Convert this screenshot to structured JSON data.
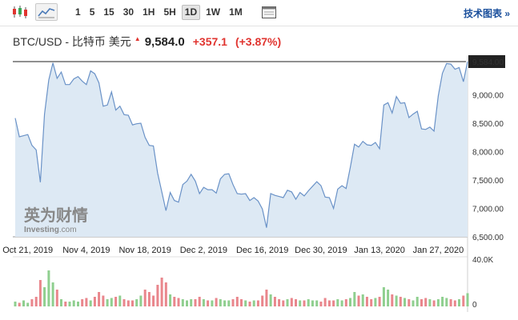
{
  "toolbar": {
    "intervals": [
      "1",
      "5",
      "15",
      "30",
      "1H",
      "5H",
      "1D",
      "1W",
      "1M"
    ],
    "active_interval": "1D",
    "tech_chart_link": "技术图表 »"
  },
  "quote": {
    "name": "BTC/USD - 比特币 美元",
    "price": "9,584.0",
    "change": "+357.1",
    "change_pct": "(+3.87%)",
    "color_down": "#e0342f"
  },
  "watermark": {
    "cn": "英为财情",
    "en_prefix": "Investing",
    "en_suffix": ".com"
  },
  "chart_data": {
    "type": "area",
    "x_tick_labels": [
      "Oct 21, 2019",
      "Nov 4, 2019",
      "Nov 18, 2019",
      "Dec 2, 2019",
      "Dec 16, 2019",
      "Dec 30, 2019",
      "Jan 13, 2020",
      "Jan 27, 2020"
    ],
    "y_tick_labels": [
      "9,000.00",
      "8,500.00",
      "8,000.00",
      "7,500.00",
      "7,000.00",
      "6,500.00"
    ],
    "ylim": [
      6500,
      9584
    ],
    "last_price_label": "9,584.00",
    "colors": {
      "line": "#6a92c7",
      "fill": "#dde9f4",
      "vol_up": "#8fcf8f",
      "vol_down": "#e9868c"
    },
    "price_series": {
      "x": [
        "2019-10-18",
        "2019-10-19",
        "2019-10-20",
        "2019-10-21",
        "2019-10-22",
        "2019-10-23",
        "2019-10-24",
        "2019-10-25",
        "2019-10-26",
        "2019-10-27",
        "2019-10-28",
        "2019-10-29",
        "2019-10-30",
        "2019-10-31",
        "2019-11-01",
        "2019-11-02",
        "2019-11-03",
        "2019-11-04",
        "2019-11-05",
        "2019-11-06",
        "2019-11-07",
        "2019-11-08",
        "2019-11-09",
        "2019-11-10",
        "2019-11-11",
        "2019-11-12",
        "2019-11-13",
        "2019-11-14",
        "2019-11-15",
        "2019-11-16",
        "2019-11-17",
        "2019-11-18",
        "2019-11-19",
        "2019-11-20",
        "2019-11-21",
        "2019-11-22",
        "2019-11-23",
        "2019-11-24",
        "2019-11-25",
        "2019-11-26",
        "2019-11-27",
        "2019-11-28",
        "2019-11-29",
        "2019-11-30",
        "2019-12-01",
        "2019-12-02",
        "2019-12-03",
        "2019-12-04",
        "2019-12-05",
        "2019-12-06",
        "2019-12-07",
        "2019-12-08",
        "2019-12-09",
        "2019-12-10",
        "2019-12-11",
        "2019-12-12",
        "2019-12-13",
        "2019-12-14",
        "2019-12-15",
        "2019-12-16",
        "2019-12-17",
        "2019-12-18",
        "2019-12-19",
        "2019-12-20",
        "2019-12-21",
        "2019-12-22",
        "2019-12-23",
        "2019-12-24",
        "2019-12-25",
        "2019-12-26",
        "2019-12-27",
        "2019-12-28",
        "2019-12-29",
        "2019-12-30",
        "2019-12-31",
        "2020-01-01",
        "2020-01-02",
        "2020-01-03",
        "2020-01-04",
        "2020-01-05",
        "2020-01-06",
        "2020-01-07",
        "2020-01-08",
        "2020-01-09",
        "2020-01-10",
        "2020-01-11",
        "2020-01-12",
        "2020-01-13",
        "2020-01-14",
        "2020-01-15",
        "2020-01-16",
        "2020-01-17",
        "2020-01-18",
        "2020-01-19",
        "2020-01-20",
        "2020-01-21",
        "2020-01-22",
        "2020-01-23",
        "2020-01-24",
        "2020-01-25",
        "2020-01-26",
        "2020-01-27",
        "2020-01-28",
        "2020-01-29",
        "2020-01-30",
        "2020-01-31",
        "2020-02-01",
        "2020-02-02",
        "2020-02-03"
      ],
      "values": [
        8590,
        8260,
        8280,
        8300,
        8110,
        8030,
        7460,
        8660,
        9260,
        9560,
        9290,
        9400,
        9180,
        9180,
        9280,
        9320,
        9240,
        9180,
        9420,
        9370,
        9210,
        8800,
        8820,
        9050,
        8730,
        8800,
        8650,
        8640,
        8470,
        8490,
        8500,
        8250,
        8110,
        8100,
        7620,
        7290,
        6960,
        7280,
        7140,
        7110,
        7420,
        7480,
        7600,
        7480,
        7260,
        7370,
        7330,
        7330,
        7270,
        7520,
        7600,
        7610,
        7420,
        7260,
        7250,
        7260,
        7140,
        7190,
        7130,
        6990,
        6660,
        7260,
        7230,
        7210,
        7190,
        7320,
        7290,
        7160,
        7280,
        7220,
        7310,
        7390,
        7470,
        7400,
        7200,
        7190,
        7000,
        7340,
        7400,
        7350,
        7720,
        8130,
        8080,
        8180,
        8120,
        8110,
        8160,
        8050,
        8820,
        8860,
        8680,
        8970,
        8850,
        8860,
        8600,
        8660,
        8710,
        8400,
        8390,
        8430,
        8360,
        8980,
        9380,
        9550,
        9540,
        9450,
        9480,
        9230,
        9584
      ]
    },
    "volume_ylabel": "40.0K",
    "volume_zero_label": "0",
    "volume": {
      "values": [
        4,
        3,
        5,
        3,
        6,
        8,
        22,
        16,
        30,
        20,
        14,
        6,
        4,
        4,
        5,
        4,
        6,
        7,
        5,
        8,
        12,
        9,
        6,
        7,
        8,
        9,
        6,
        5,
        5,
        6,
        9,
        14,
        12,
        9,
        18,
        24,
        20,
        10,
        8,
        7,
        6,
        5,
        6,
        6,
        8,
        6,
        5,
        5,
        7,
        6,
        5,
        5,
        6,
        8,
        6,
        5,
        4,
        5,
        5,
        9,
        14,
        10,
        8,
        6,
        5,
        6,
        7,
        6,
        5,
        5,
        6,
        5,
        5,
        4,
        7,
        5,
        5,
        6,
        5,
        6,
        7,
        12,
        9,
        10,
        8,
        6,
        7,
        8,
        16,
        14,
        10,
        9,
        8,
        7,
        6,
        5,
        8,
        6,
        7,
        6,
        5,
        6,
        8,
        7,
        6,
        5,
        6,
        9,
        11
      ],
      "up": [
        1,
        0,
        1,
        1,
        0,
        0,
        0,
        1,
        1,
        1,
        0,
        1,
        0,
        1,
        1,
        1,
        0,
        0,
        1,
        0,
        0,
        0,
        1,
        1,
        0,
        1,
        0,
        0,
        0,
        1,
        1,
        0,
        0,
        0,
        0,
        0,
        0,
        1,
        0,
        0,
        1,
        1,
        1,
        0,
        0,
        1,
        0,
        1,
        0,
        1,
        1,
        1,
        0,
        0,
        0,
        1,
        0,
        1,
        0,
        0,
        0,
        1,
        0,
        0,
        0,
        1,
        0,
        0,
        1,
        0,
        1,
        1,
        1,
        0,
        0,
        0,
        0,
        1,
        1,
        0,
        1,
        1,
        0,
        1,
        0,
        0,
        1,
        0,
        1,
        1,
        0,
        1,
        0,
        1,
        0,
        1,
        1,
        0,
        0,
        1,
        0,
        1,
        1,
        1,
        0,
        0,
        1,
        0,
        1
      ]
    }
  }
}
